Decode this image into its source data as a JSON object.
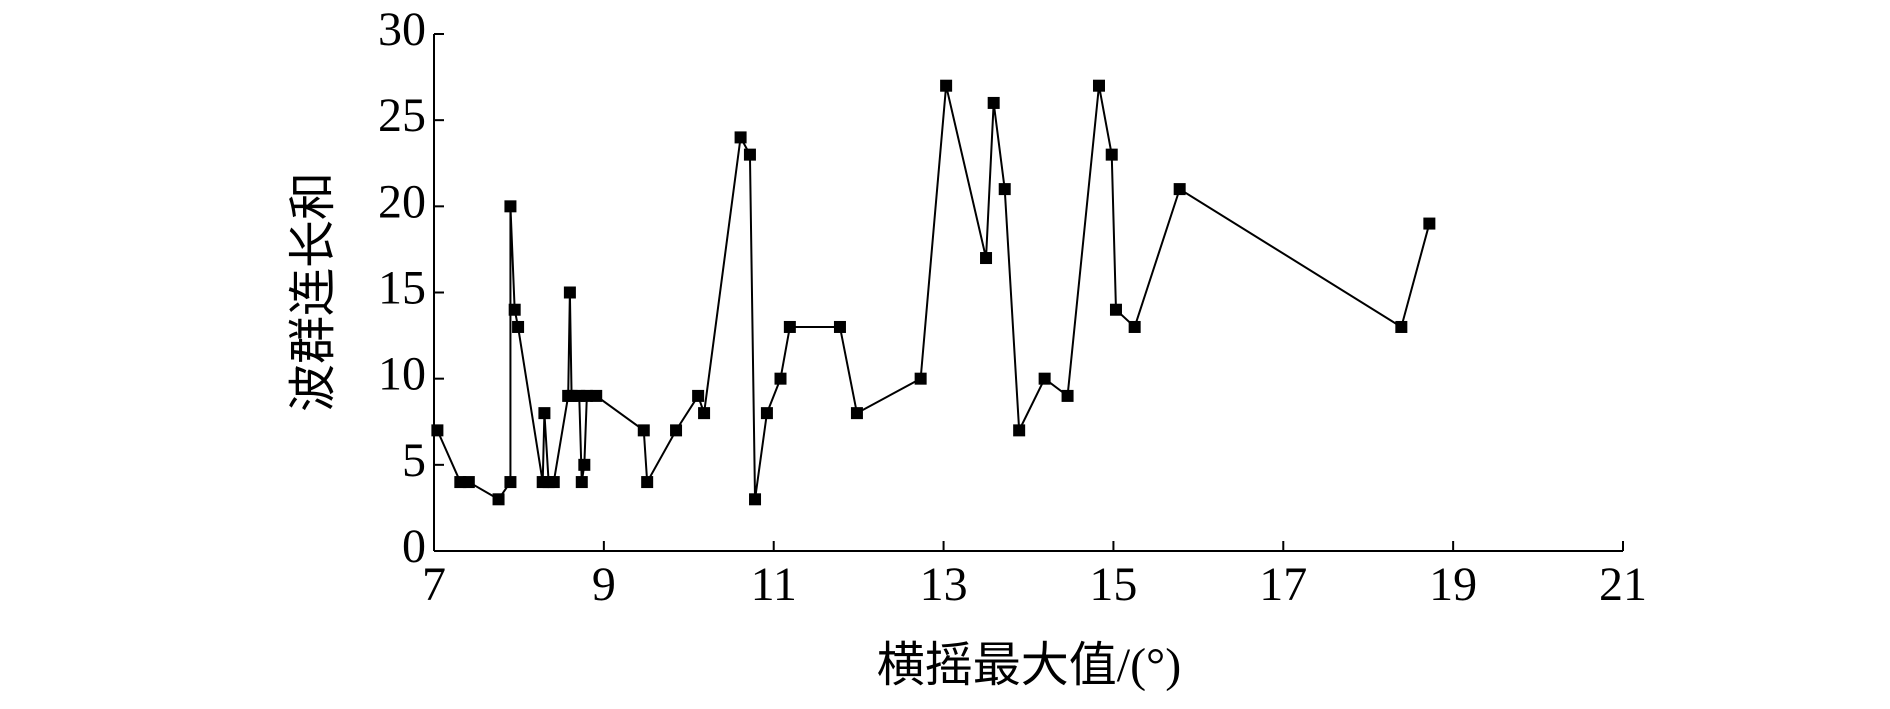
{
  "chart_data": {
    "type": "line",
    "xlabel": "横摇最大值/(°)",
    "ylabel": "波群连长和",
    "x": [
      7.04,
      7.31,
      7.41,
      7.76,
      7.9,
      7.9,
      7.95,
      7.99,
      8.28,
      8.3,
      8.35,
      8.41,
      8.58,
      8.6,
      8.62,
      8.71,
      8.74,
      8.77,
      8.8,
      8.91,
      9.47,
      9.51,
      9.85,
      10.11,
      10.18,
      10.61,
      10.72,
      10.78,
      10.92,
      11.08,
      11.19,
      11.78,
      11.98,
      12.73,
      13.03,
      13.5,
      13.59,
      13.72,
      13.89,
      14.19,
      14.46,
      14.83,
      14.98,
      15.03,
      15.25,
      15.78,
      18.39,
      18.72
    ],
    "series": [
      {
        "name": "波群连长和",
        "color": "#000000",
        "values": [
          7,
          4,
          4,
          3,
          4,
          20,
          14,
          13,
          4,
          8,
          4,
          4,
          9,
          15,
          9,
          9,
          4,
          5,
          9,
          9,
          7,
          4,
          7,
          9,
          8,
          24,
          23,
          3,
          8,
          10,
          13,
          13,
          8,
          10,
          27,
          17,
          26,
          21,
          7,
          10,
          9,
          27,
          23,
          14,
          13,
          21,
          13,
          19
        ]
      }
    ],
    "xlim": [
      7,
      21
    ],
    "xticks": [
      7,
      9,
      11,
      13,
      15,
      17,
      19,
      21
    ],
    "ylim": [
      0,
      30
    ],
    "yticks": [
      0,
      5,
      10,
      15,
      20,
      25,
      30
    ],
    "grid": false
  }
}
